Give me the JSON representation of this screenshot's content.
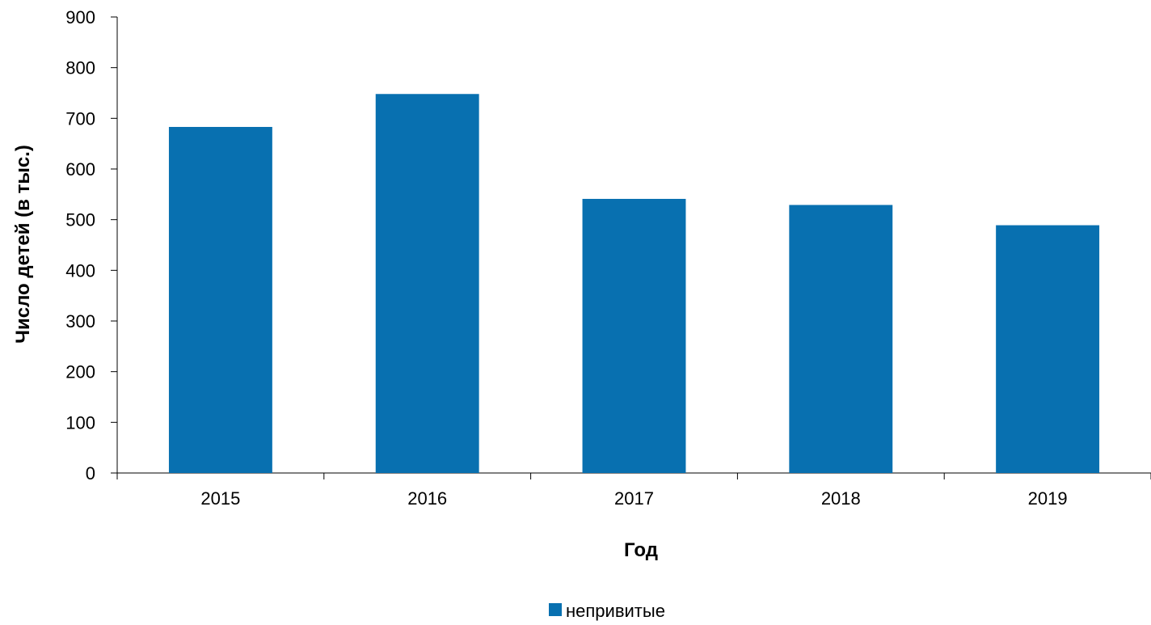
{
  "chart_data": {
    "type": "bar",
    "categories": [
      "2015",
      "2016",
      "2017",
      "2018",
      "2019"
    ],
    "series": [
      {
        "name": "непривитые",
        "values": [
          683,
          748,
          541,
          529,
          489
        ],
        "color": "#0870b0"
      }
    ],
    "title": "",
    "xlabel": "Год",
    "ylabel": "Число детей (в тыс.)",
    "ylim": [
      0,
      900
    ],
    "yticks": [
      "0",
      "100",
      "200",
      "300",
      "400",
      "500",
      "600",
      "700",
      "800",
      "900"
    ],
    "grid": false,
    "legend_position": "bottom-center"
  }
}
